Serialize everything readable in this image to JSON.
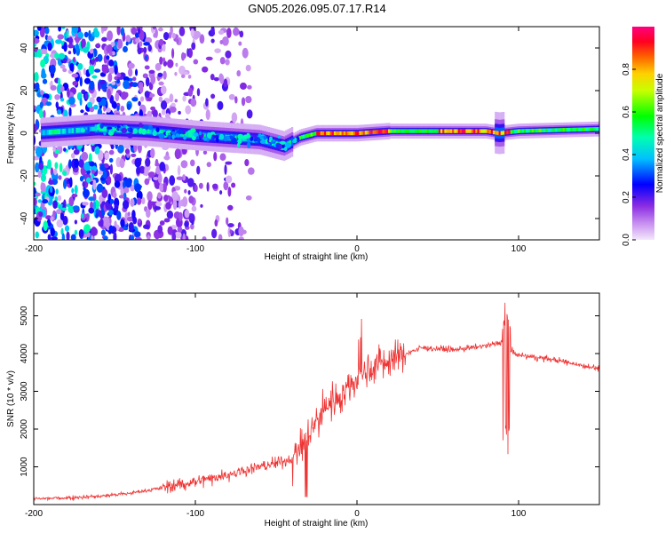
{
  "title": "GN05.2026.095.07.17.R14",
  "chart_data": [
    {
      "type": "heatmap",
      "name": "spectrogram",
      "xlabel": "Height of straight line (km)",
      "ylabel": "Frequency (Hz)",
      "xlim": [
        -200,
        150
      ],
      "ylim": [
        -50,
        50
      ],
      "x_ticks": [
        -200,
        -100,
        0,
        100
      ],
      "y_ticks": [
        -40,
        -20,
        0,
        20,
        40
      ],
      "colorbar": {
        "label": "Normalized spectral amplitude",
        "range": [
          0,
          1
        ],
        "ticks": [
          "0.0",
          "0.2",
          "0.4",
          "0.6",
          "0.8"
        ]
      },
      "ridge": {
        "x": [
          -200,
          -160,
          -130,
          -100,
          -80,
          -60,
          -45,
          -35,
          -25,
          -10,
          0,
          20,
          50,
          80,
          88,
          100,
          150
        ],
        "freq_hz": [
          0,
          2,
          1,
          -1,
          -2,
          -3,
          -6,
          -2,
          0,
          0,
          0,
          1,
          1,
          1,
          0,
          1,
          2
        ]
      }
    },
    {
      "type": "line",
      "name": "snr",
      "xlabel": "Height of straight line (km)",
      "ylabel": "SNR (10 * v/v)",
      "xlim": [
        -200,
        150
      ],
      "ylim": [
        0,
        5600
      ],
      "x_ticks": [
        -200,
        -100,
        0,
        100
      ],
      "y_ticks": [
        1000,
        2000,
        3000,
        4000,
        5000
      ],
      "color": "#ee3333",
      "series": [
        {
          "name": "SNR",
          "x": [
            -200,
            -180,
            -160,
            -140,
            -120,
            -100,
            -80,
            -60,
            -40,
            -30,
            -20,
            -10,
            0,
            10,
            20,
            30,
            40,
            60,
            80,
            90,
            92,
            94,
            100,
            120,
            150
          ],
          "values": [
            150,
            180,
            220,
            300,
            450,
            600,
            800,
            1000,
            1200,
            1800,
            2600,
            2900,
            3300,
            3700,
            3800,
            4000,
            4150,
            4100,
            4200,
            4300,
            1300,
            4100,
            3950,
            3850,
            3600
          ]
        }
      ]
    }
  ]
}
